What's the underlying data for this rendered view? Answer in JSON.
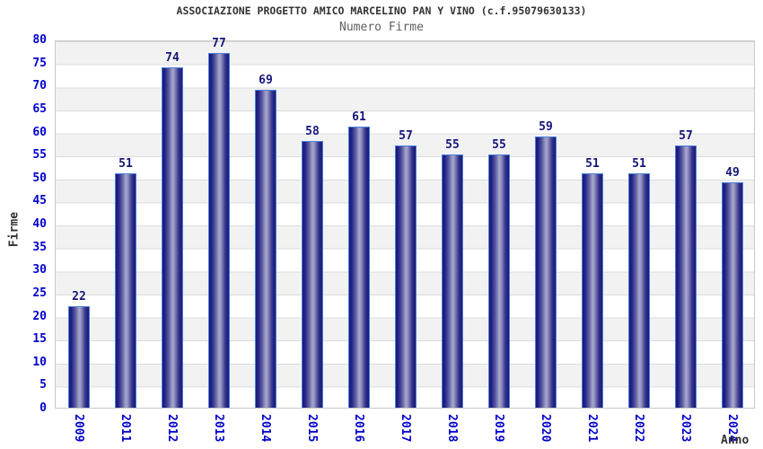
{
  "header": {
    "title": "ASSOCIAZIONE PROGETTO AMICO MARCELINO PAN Y VINO (c.f.95079630133)",
    "subtitle": "Numero Firme"
  },
  "chart_data": {
    "type": "bar",
    "title": "ASSOCIAZIONE PROGETTO AMICO MARCELINO PAN Y VINO (c.f.95079630133)",
    "subtitle": "Numero Firme",
    "categories": [
      "2009",
      "2011",
      "2012",
      "2013",
      "2014",
      "2015",
      "2016",
      "2017",
      "2018",
      "2019",
      "2020",
      "2021",
      "2022",
      "2023",
      "2024"
    ],
    "values": [
      22,
      51,
      74,
      77,
      69,
      58,
      61,
      57,
      55,
      55,
      59,
      51,
      51,
      57,
      49
    ],
    "xlabel": "Anno",
    "ylabel": "Firme",
    "ylim": [
      0,
      80
    ],
    "ytick_step": 5,
    "yticks": [
      0,
      5,
      10,
      15,
      20,
      25,
      30,
      35,
      40,
      45,
      50,
      55,
      60,
      65,
      70,
      75,
      80
    ],
    "grid": "horizontal-bands",
    "legend_position": "none",
    "bar_value_labels_shown": true
  },
  "colors": {
    "bar_dark": "#191974",
    "bar_light": "#a6a6cf",
    "bar_border": "#4c80da",
    "tick_label": "#0202cc",
    "value_label": "#15157a",
    "title_text": "#333333",
    "subtitle_text": "#606060",
    "band_fill": "#f2f2f2",
    "gridline": "#dcdcdc",
    "plot_border": "#c9c9c9",
    "background": "#ffffff"
  }
}
